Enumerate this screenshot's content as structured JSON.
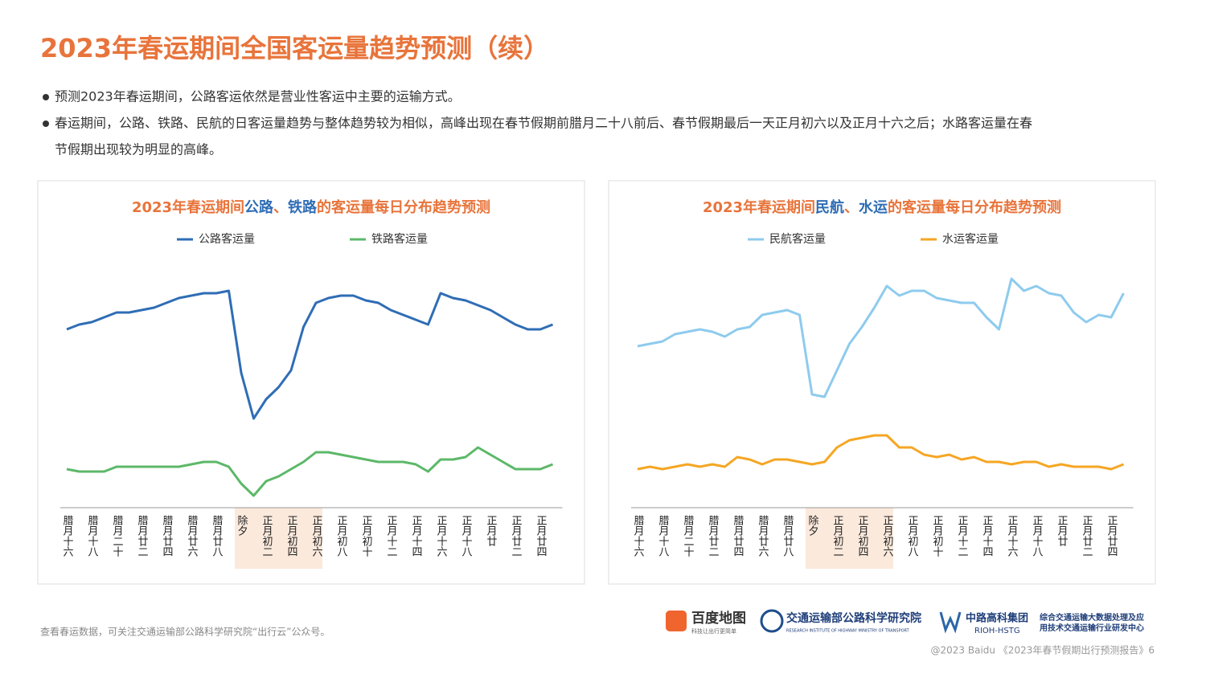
{
  "title": "2023年春运期间全国客运量趋势预测（续）",
  "bullets": [
    [
      "预测2023年春运期间，公路客运依然是营业性客运中主要的运输方式。"
    ],
    [
      "春运期间，公路、铁路、民航的日客运量趋势与整体趋势较为相似，高峰出现在春节假期前腊月二十八前后、春节假期最后一天正月初六以及正月十六之后；水路客运量在春",
      "节假期出现较为明显的高峰。"
    ]
  ],
  "footer": {
    "note": "查看春运数据，可关注交通运输部公路科学研究院“出行云”公众号。",
    "copyright": "@2023 Baidu 《2023年春节假期出行预测报告》6",
    "logos": [
      "百度地图",
      "科技让出行更简单",
      "交通运输部公路科学研究院",
      "RESEARCH INSTITUTE OF HIGHWAY MINISTRY OF TRANSPORT",
      "中路高科集团",
      "RIOH-HSTG",
      "综合交通运输大数据处理及应",
      "用技术交通运输行业研发中心"
    ]
  },
  "chart_data": [
    {
      "type": "line",
      "title": [
        "2023年春运期间",
        "公路",
        "、",
        "铁路",
        "的客运量每日分布趋势预测"
      ],
      "title_colors": [
        "#e8743b",
        "#2f6db5",
        "#e8743b",
        "#2f6db5",
        "#e8743b"
      ],
      "categories": [
        "腊月十六",
        null,
        "腊月十八",
        null,
        "腊月二十",
        null,
        "腊月廿二",
        null,
        "腊月廿四",
        null,
        "腊月廿六",
        null,
        "腊月廿八",
        null,
        "除夕",
        null,
        "正月初二",
        null,
        "正月初四",
        null,
        "正月初六",
        null,
        "正月初八",
        null,
        "正月初十",
        null,
        "正月十二",
        null,
        "正月十四",
        null,
        "正月十六",
        null,
        "正月十八",
        null,
        "正月廿",
        null,
        "正月廿二",
        null,
        "正月廿四",
        null
      ],
      "ylim": [
        0,
        100
      ],
      "series": [
        {
          "name": "公路客运量",
          "color": "#2f6db5",
          "values": [
            74,
            76,
            77,
            79,
            81,
            81,
            82,
            83,
            85,
            87,
            88,
            89,
            89,
            90,
            56,
            37,
            45,
            50,
            57,
            75,
            85,
            87,
            88,
            88,
            86,
            85,
            82,
            80,
            78,
            76,
            89,
            87,
            86,
            84,
            82,
            79,
            76,
            74,
            74,
            76
          ]
        },
        {
          "name": "铁路客运量",
          "color": "#5cb868",
          "values": [
            16,
            15,
            15,
            15,
            17,
            17,
            17,
            17,
            17,
            17,
            18,
            19,
            19,
            17,
            10,
            5,
            11,
            13,
            16,
            19,
            23,
            23,
            22,
            21,
            20,
            19,
            19,
            19,
            18,
            15,
            20,
            20,
            21,
            25,
            22,
            19,
            16,
            16,
            16,
            18
          ]
        }
      ]
    },
    {
      "type": "line",
      "title": [
        "2023年春运期间",
        "民航",
        "、",
        "水运",
        "的客运量每日分布趋势预测"
      ],
      "title_colors": [
        "#e8743b",
        "#2f6db5",
        "#e8743b",
        "#2f6db5",
        "#e8743b"
      ],
      "categories": [
        "腊月十六",
        null,
        "腊月十八",
        null,
        "腊月二十",
        null,
        "腊月廿二",
        null,
        "腊月廿四",
        null,
        "腊月廿六",
        null,
        "腊月廿八",
        null,
        "除夕",
        null,
        "正月初二",
        null,
        "正月初四",
        null,
        "正月初六",
        null,
        "正月初八",
        null,
        "正月初十",
        null,
        "正月十二",
        null,
        "正月十四",
        null,
        "正月十六",
        null,
        "正月十八",
        null,
        "正月廿",
        null,
        "正月廿二",
        null,
        "正月廿四",
        null
      ],
      "ylim": [
        0,
        100
      ],
      "series": [
        {
          "name": "民航客运量",
          "color": "#8ecbee",
          "values": [
            67,
            68,
            69,
            72,
            73,
            74,
            73,
            71,
            74,
            75,
            80,
            81,
            82,
            80,
            47,
            46,
            57,
            68,
            75,
            83,
            92,
            88,
            90,
            90,
            87,
            86,
            85,
            85,
            79,
            74,
            95,
            90,
            92,
            89,
            88,
            81,
            77,
            80,
            79,
            89
          ]
        },
        {
          "name": "水运客运量",
          "color": "#f5a623",
          "values": [
            16,
            17,
            16,
            17,
            18,
            17,
            18,
            17,
            21,
            20,
            18,
            20,
            20,
            19,
            18,
            19,
            25,
            28,
            29,
            30,
            30,
            25,
            25,
            22,
            21,
            22,
            20,
            21,
            19,
            19,
            18,
            19,
            19,
            17,
            18,
            17,
            17,
            17,
            16,
            18
          ]
        }
      ]
    }
  ]
}
